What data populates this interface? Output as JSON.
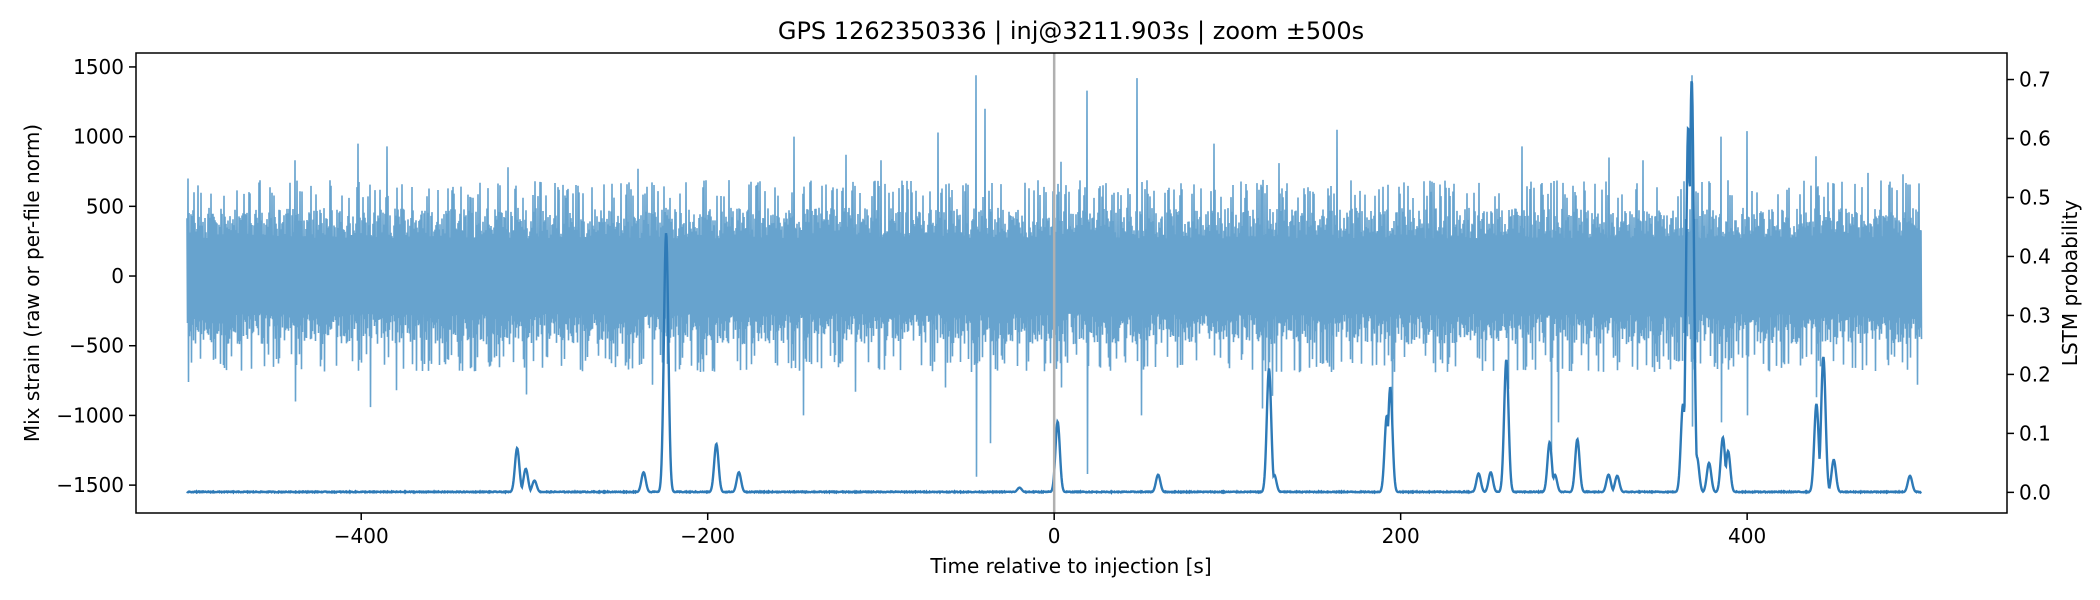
{
  "chart_data": {
    "type": "line",
    "title": "GPS 1262350336 | inj@3211.903s | zoom ±500s",
    "xlabel": "Time relative to injection [s]",
    "ylabel_left": "Mix strain (raw or per-file norm)",
    "ylabel_right": "LSTM probability",
    "xlim": [
      -530,
      550
    ],
    "ylim_left": [
      -1700,
      1600
    ],
    "ylim_right": [
      -0.035,
      0.745
    ],
    "x_ticks": [
      -400,
      -200,
      0,
      200,
      400
    ],
    "x_tick_labels": [
      "−400",
      "−200",
      "0",
      "200",
      "400"
    ],
    "y_left_ticks": [
      -1500,
      -1000,
      -500,
      0,
      500,
      1000,
      1500
    ],
    "y_left_tick_labels": [
      "−1500",
      "−1000",
      "−500",
      "0",
      "500",
      "1000",
      "1500"
    ],
    "y_right_ticks": [
      0.0,
      0.1,
      0.2,
      0.3,
      0.4,
      0.5,
      0.6,
      0.7
    ],
    "y_right_tick_labels": [
      "0.0",
      "0.1",
      "0.2",
      "0.3",
      "0.4",
      "0.5",
      "0.6",
      "0.7"
    ],
    "injection_line_x": 0,
    "grid": false,
    "series": [
      {
        "axis": "left",
        "color": "#5f9ecb",
        "x_range": [
          -500,
          500
        ],
        "typical_amplitude": 380,
        "envelope": 560,
        "spikes": [
          {
            "x": -500,
            "y": 700
          },
          {
            "x": -500,
            "y": -760
          },
          {
            "x": -438,
            "y": 830
          },
          {
            "x": -438,
            "y": -900
          },
          {
            "x": -402,
            "y": 950
          },
          {
            "x": -395,
            "y": -940
          },
          {
            "x": -385,
            "y": 930
          },
          {
            "x": -380,
            "y": -820
          },
          {
            "x": -315,
            "y": 780
          },
          {
            "x": -305,
            "y": -850
          },
          {
            "x": -240,
            "y": 770
          },
          {
            "x": -232,
            "y": -780
          },
          {
            "x": -150,
            "y": 1000
          },
          {
            "x": -145,
            "y": -1000
          },
          {
            "x": -120,
            "y": 870
          },
          {
            "x": -115,
            "y": -830
          },
          {
            "x": -100,
            "y": 830
          },
          {
            "x": -67,
            "y": 1030
          },
          {
            "x": -63,
            "y": -800
          },
          {
            "x": -45,
            "y": 1440
          },
          {
            "x": -45,
            "y": -1440
          },
          {
            "x": -40,
            "y": 1200
          },
          {
            "x": -37,
            "y": -1200
          },
          {
            "x": 4,
            "y": 820
          },
          {
            "x": 4,
            "y": -800
          },
          {
            "x": 19,
            "y": 1330
          },
          {
            "x": 19,
            "y": -1420
          },
          {
            "x": 48,
            "y": 1420
          },
          {
            "x": 50,
            "y": -1000
          },
          {
            "x": 92,
            "y": 950
          },
          {
            "x": 120,
            "y": -950
          },
          {
            "x": 126,
            "y": -860
          },
          {
            "x": 130,
            "y": 810
          },
          {
            "x": 163,
            "y": 1050
          },
          {
            "x": 195,
            "y": -1060
          },
          {
            "x": 262,
            "y": -810
          },
          {
            "x": 270,
            "y": 930
          },
          {
            "x": 287,
            "y": -1250
          },
          {
            "x": 291,
            "y": -1050
          },
          {
            "x": 320,
            "y": 850
          },
          {
            "x": 340,
            "y": 830
          },
          {
            "x": 368,
            "y": 1440
          },
          {
            "x": 368,
            "y": -1080
          },
          {
            "x": 385,
            "y": 1000
          },
          {
            "x": 385,
            "y": -1050
          },
          {
            "x": 400,
            "y": 1040
          },
          {
            "x": 400,
            "y": -1000
          },
          {
            "x": 440,
            "y": 860
          },
          {
            "x": 440,
            "y": -870
          },
          {
            "x": 470,
            "y": 740
          },
          {
            "x": 490,
            "y": 730
          },
          {
            "x": 498,
            "y": -780
          }
        ]
      },
      {
        "axis": "right",
        "color": "#2e7ab7",
        "baseline": 0.0,
        "x_range": [
          -500,
          500
        ],
        "peaks": [
          {
            "x": -310,
            "y": 0.075
          },
          {
            "x": -305,
            "y": 0.04
          },
          {
            "x": -300,
            "y": 0.02
          },
          {
            "x": -237,
            "y": 0.034
          },
          {
            "x": -224,
            "y": 0.44
          },
          {
            "x": -195,
            "y": 0.082
          },
          {
            "x": -182,
            "y": 0.034
          },
          {
            "x": -20,
            "y": 0.008
          },
          {
            "x": 2,
            "y": 0.12
          },
          {
            "x": 60,
            "y": 0.03
          },
          {
            "x": 124,
            "y": 0.21
          },
          {
            "x": 127,
            "y": 0.03
          },
          {
            "x": 192,
            "y": 0.13
          },
          {
            "x": 194,
            "y": 0.178
          },
          {
            "x": 245,
            "y": 0.032
          },
          {
            "x": 252,
            "y": 0.034
          },
          {
            "x": 261,
            "y": 0.225
          },
          {
            "x": 286,
            "y": 0.085
          },
          {
            "x": 289,
            "y": 0.03
          },
          {
            "x": 302,
            "y": 0.09
          },
          {
            "x": 320,
            "y": 0.03
          },
          {
            "x": 325,
            "y": 0.028
          },
          {
            "x": 363,
            "y": 0.15
          },
          {
            "x": 366,
            "y": 0.62
          },
          {
            "x": 368,
            "y": 0.7
          },
          {
            "x": 371,
            "y": 0.06
          },
          {
            "x": 378,
            "y": 0.05
          },
          {
            "x": 386,
            "y": 0.093
          },
          {
            "x": 389,
            "y": 0.07
          },
          {
            "x": 440,
            "y": 0.15
          },
          {
            "x": 444,
            "y": 0.23
          },
          {
            "x": 450,
            "y": 0.055
          },
          {
            "x": 494,
            "y": 0.028
          }
        ]
      }
    ]
  }
}
